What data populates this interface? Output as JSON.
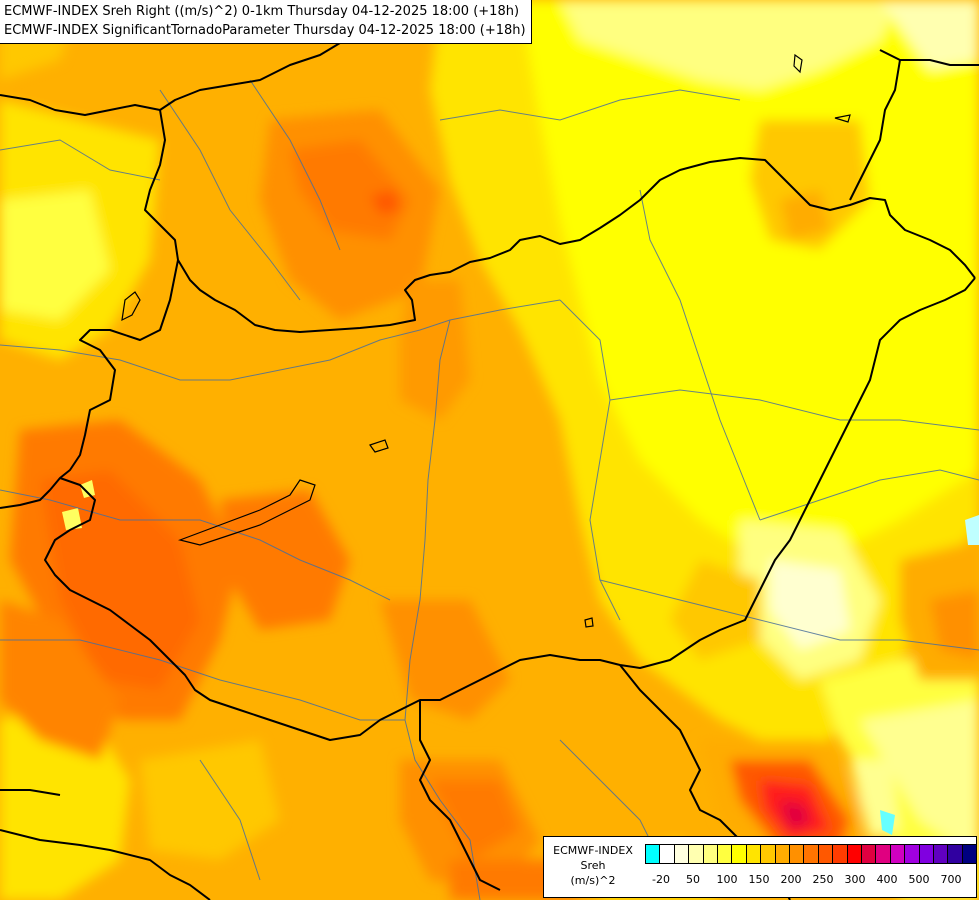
{
  "header": {
    "line1": "ECMWF-INDEX Sreh Right ((m/s)^2) 0-1km Thursday 04-12-2025 18:00 (+18h)",
    "line2": "ECMWF-INDEX SignificantTornadoParameter Thursday 04-12-2025 18:00 (+18h)"
  },
  "legend": {
    "title": [
      "ECMWF-INDEX",
      "Sreh",
      "(m/s)^2"
    ],
    "colors": [
      "#00ffff",
      "#ffffff",
      "#ffffe0",
      "#ffffb0",
      "#ffff80",
      "#ffff40",
      "#ffff00",
      "#ffe400",
      "#ffc800",
      "#ffac00",
      "#ff9000",
      "#ff7400",
      "#ff5800",
      "#ff3c00",
      "#ff0000",
      "#e00040",
      "#e00080",
      "#d000c0",
      "#a000e0",
      "#8000e0",
      "#6000c0",
      "#3000a0",
      "#000080"
    ],
    "ticks": [
      "-20",
      "50",
      "100",
      "150",
      "200",
      "250",
      "300",
      "400",
      "500",
      "700"
    ]
  },
  "colors": {
    "background": "#ffb000",
    "border": "#000000",
    "river": "#4a6f9a"
  }
}
